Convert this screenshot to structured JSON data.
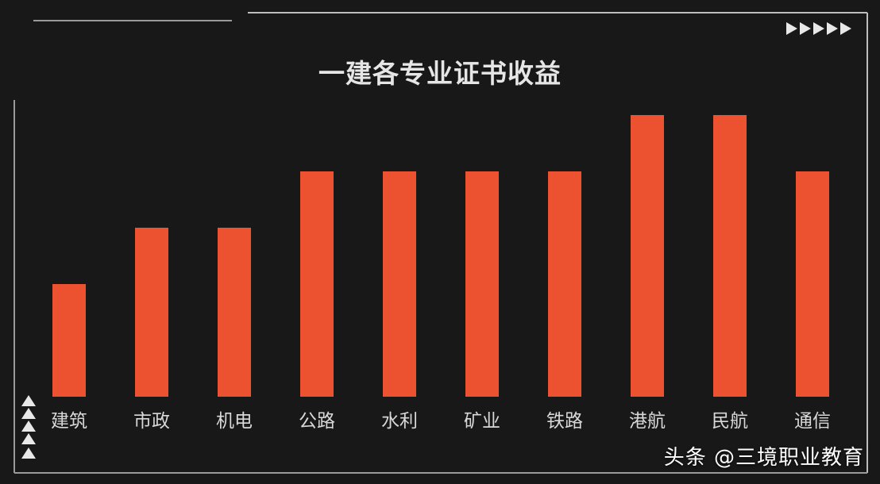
{
  "chart_data": {
    "type": "bar",
    "title": "一建各专业证书收益",
    "categories": [
      "建筑",
      "市政",
      "机电",
      "公路",
      "水利",
      "矿业",
      "铁路",
      "港航",
      "民航",
      "通信"
    ],
    "values": [
      2,
      3,
      3,
      4,
      4,
      4,
      4,
      5,
      5,
      4
    ],
    "ylim": [
      0,
      5
    ],
    "xlabel": "",
    "ylabel": "",
    "grid": false,
    "legend": "none",
    "bar_color": "#ec5230"
  },
  "watermark": "头条 @三境职业教育",
  "colors": {
    "background": "#181818",
    "frame": "#bdbdbd",
    "title": "#e6e6e6",
    "label": "#d8d8d8",
    "bar": "#ec5230"
  },
  "decorations": {
    "top_right": "arrow-right-icon",
    "bottom_left": "arrow-up-icon"
  }
}
